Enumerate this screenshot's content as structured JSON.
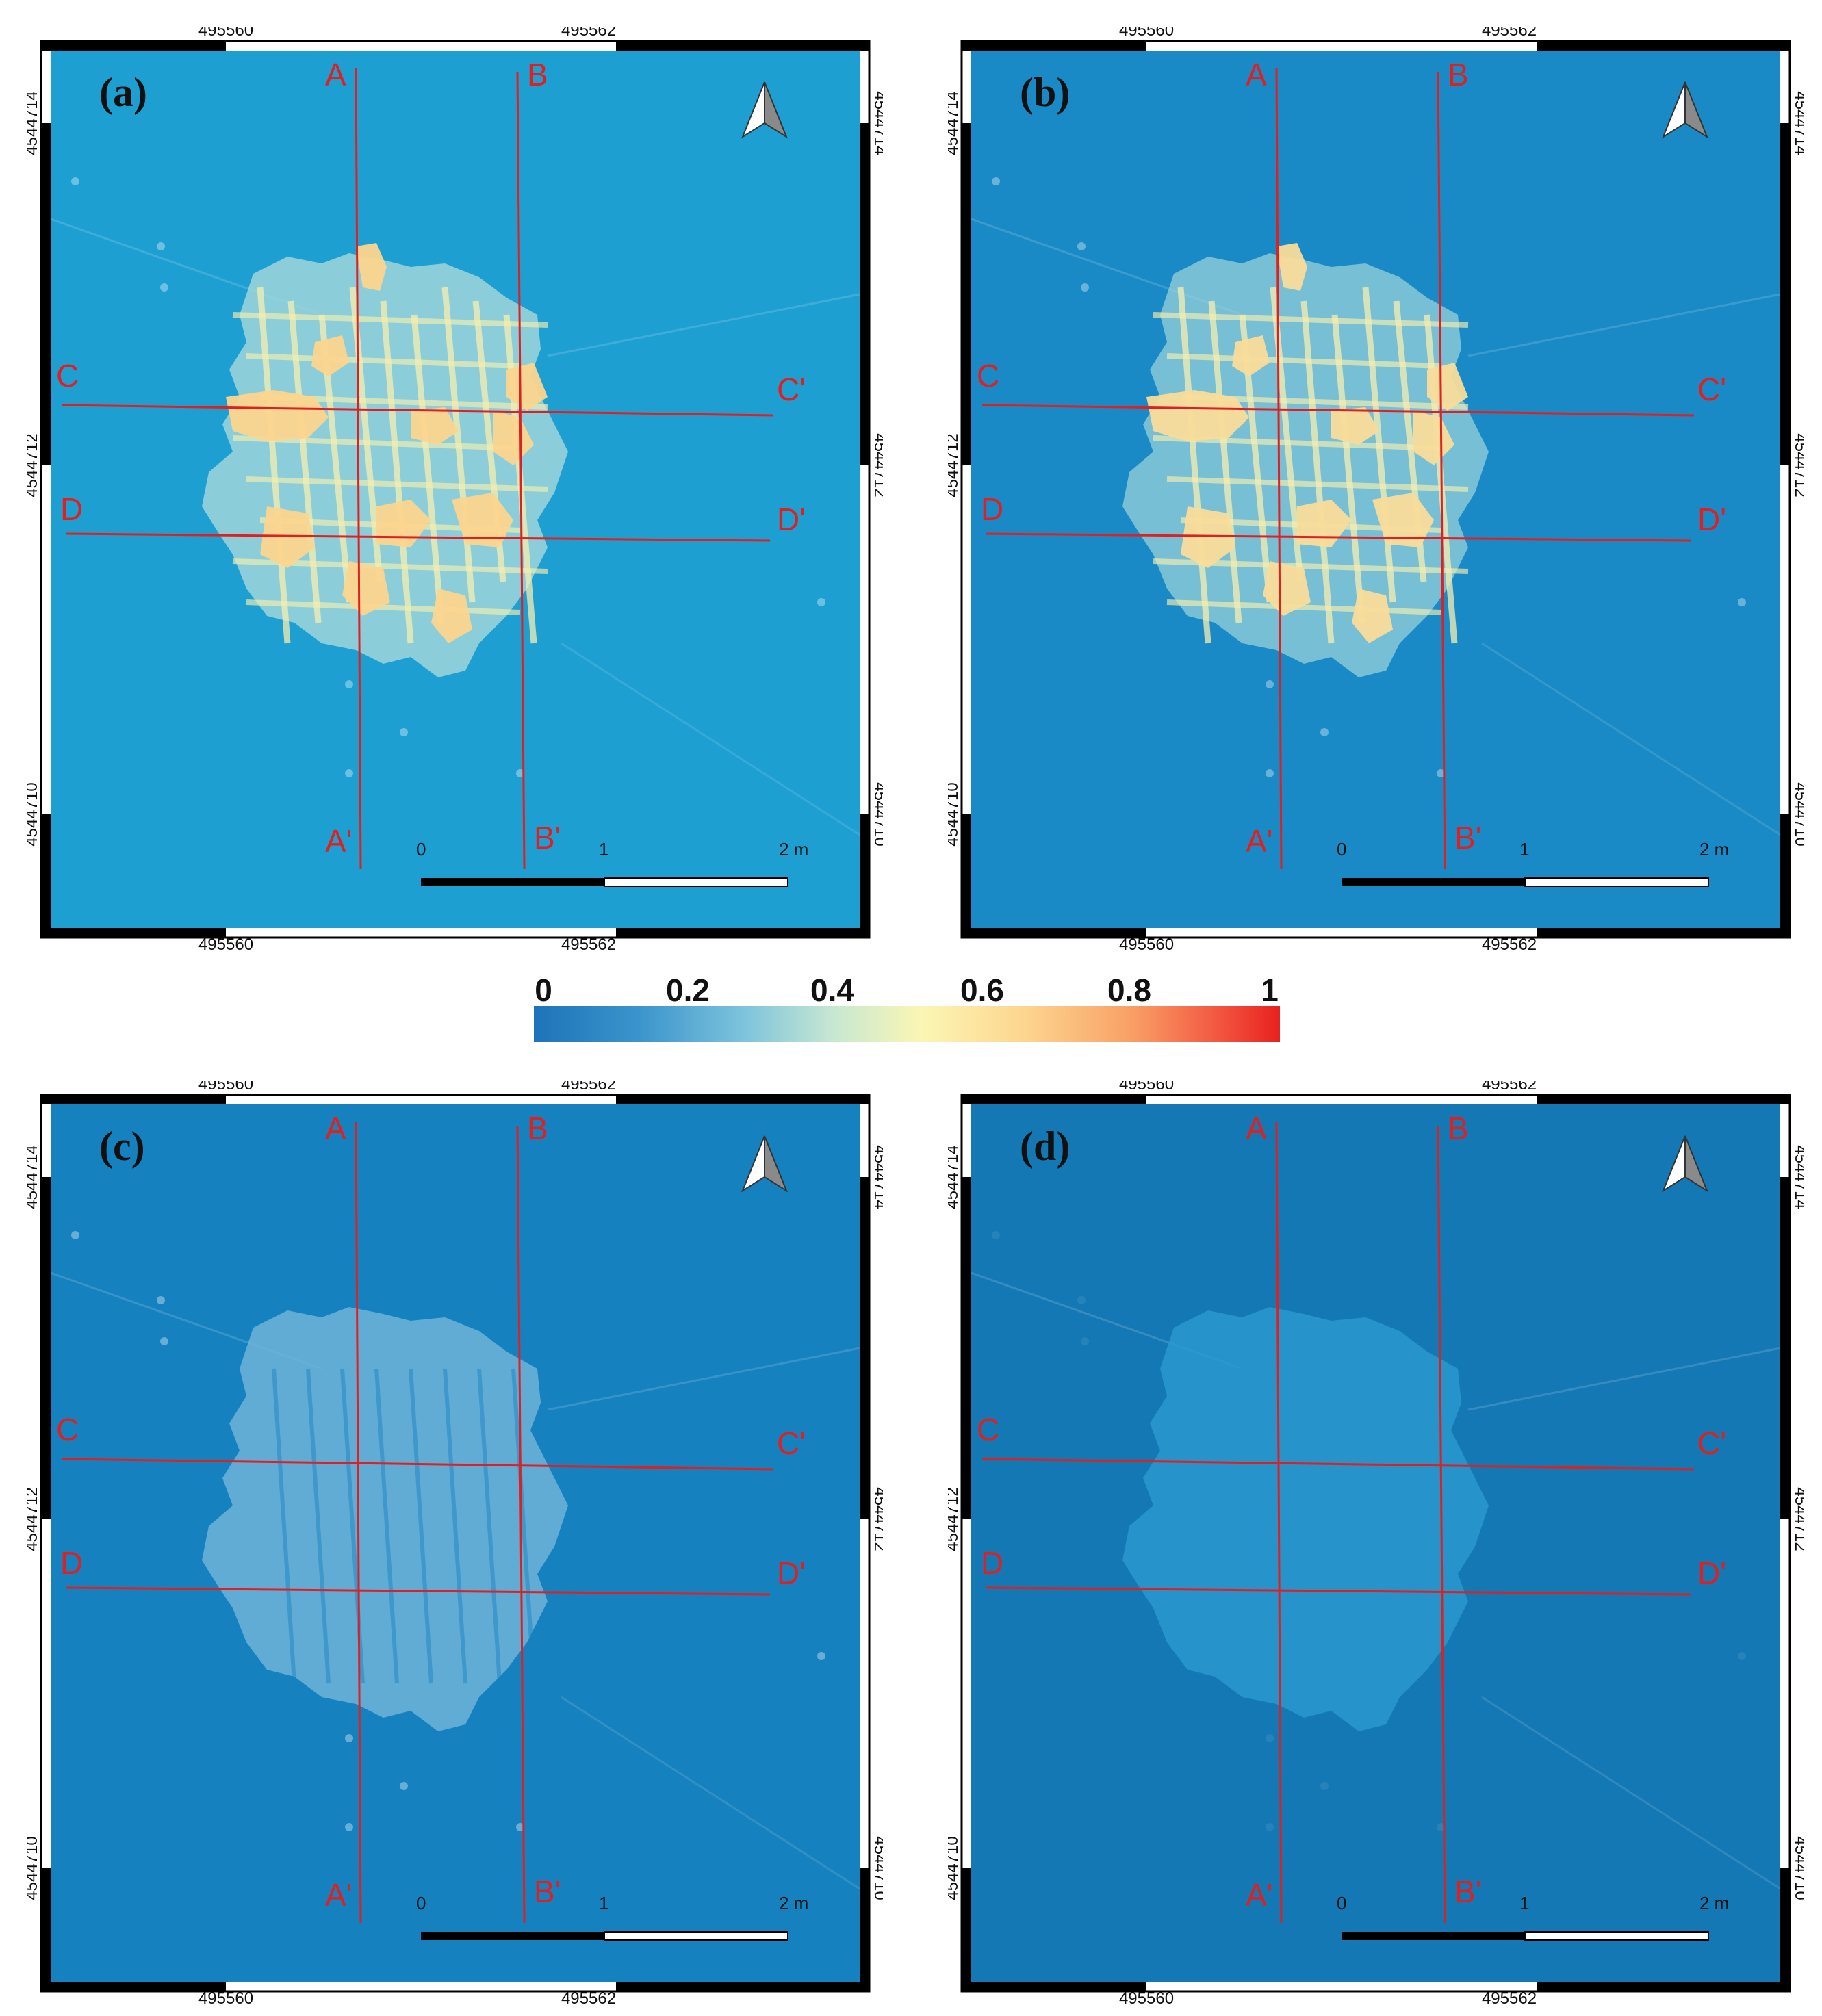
{
  "panels": [
    {
      "id": "a",
      "label": "(a)",
      "bg": "#1e9fd2",
      "mode": "raw"
    },
    {
      "id": "b",
      "label": "(b)",
      "bg": "#1a8ac6",
      "mode": "raw2"
    },
    {
      "id": "c",
      "label": "(c)",
      "bg": "#1681bf",
      "mode": "pale"
    },
    {
      "id": "d",
      "label": "(d)",
      "bg": "#1478b4",
      "mode": "faint"
    }
  ],
  "grid": {
    "x_ticks": [
      "495560",
      "495562"
    ],
    "y_ticks": [
      "4544714",
      "4544712",
      "4544710"
    ]
  },
  "profiles": {
    "A": "A",
    "A_end": "A'",
    "B": "B",
    "B_end": "B'",
    "C": "C",
    "C_end": "C'",
    "D": "D",
    "D_end": "D'"
  },
  "scale_bar": {
    "labels": [
      "0",
      "1",
      "2 m"
    ]
  },
  "north_arrow": "north-arrow-icon",
  "colorbar": {
    "ticks": [
      "0",
      "0.2",
      "0.4",
      "0.6",
      "0.8",
      "1"
    ],
    "colors": [
      "#1e73b8",
      "#7cc3dc",
      "#fbf6b4",
      "#f9a066",
      "#e8211f"
    ]
  },
  "colors": {
    "profile_line": "#e02020",
    "frame": "#000000"
  }
}
